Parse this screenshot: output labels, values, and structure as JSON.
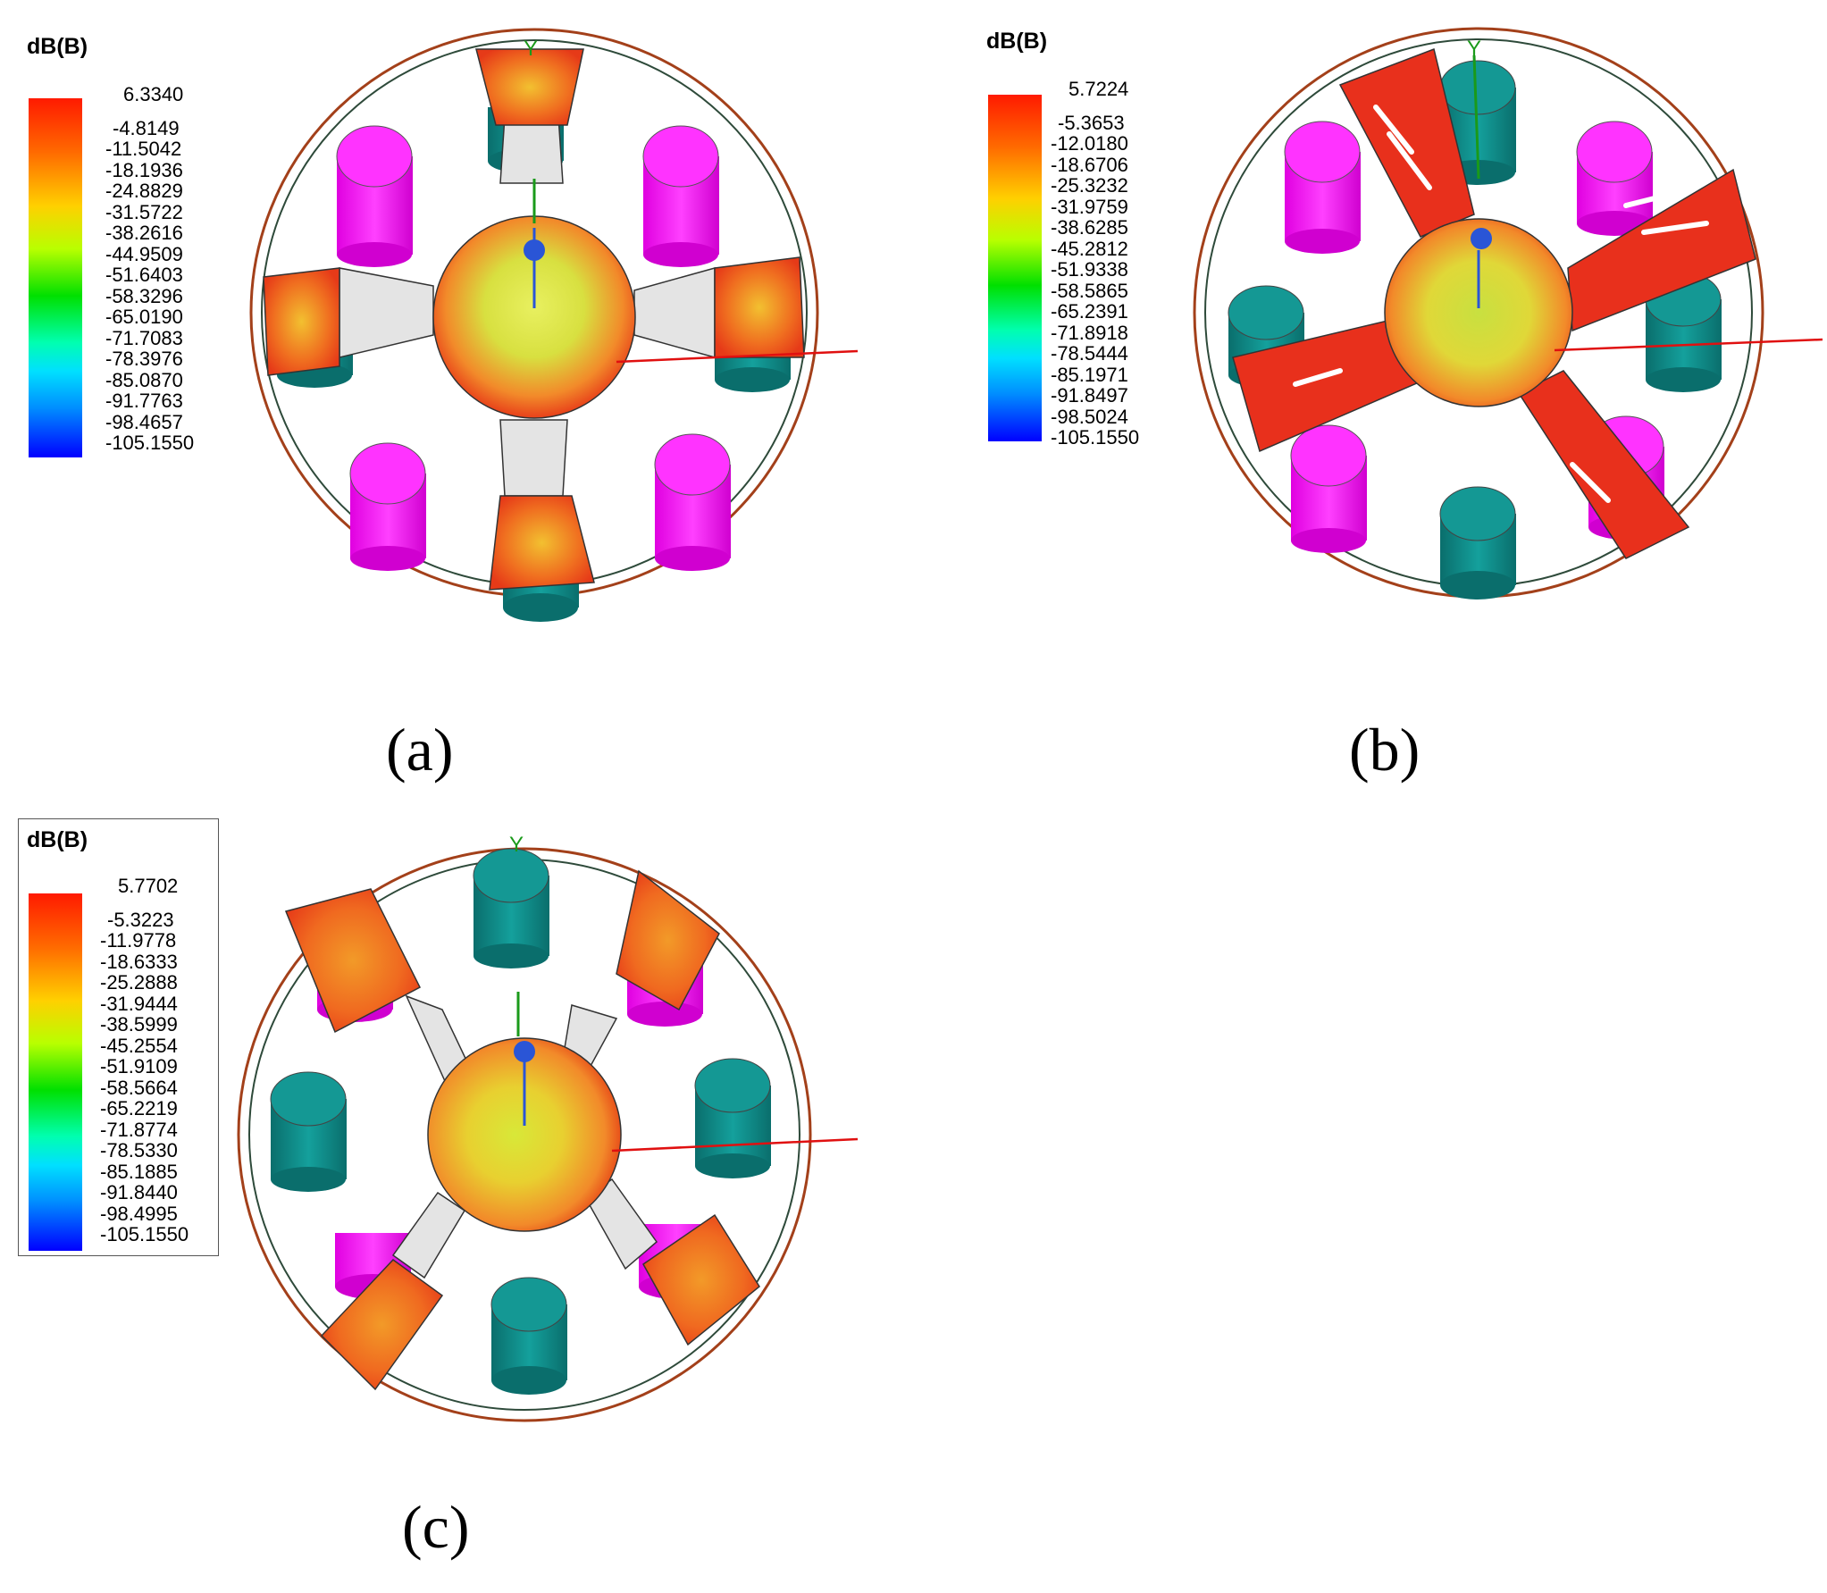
{
  "panels": [
    {
      "id": "a",
      "caption": "(a)",
      "legend": {
        "title": "dB(B)",
        "values": [
          "6.3340",
          "-4.8149",
          "-11.5042",
          "-18.1936",
          "-24.8829",
          "-31.5722",
          "-38.2616",
          "-44.9509",
          "-51.6403",
          "-58.3296",
          "-65.0190",
          "-71.7083",
          "-78.3976",
          "-85.0870",
          "-91.7763",
          "-98.4657",
          "-105.1550"
        ]
      },
      "axis_label": "Y"
    },
    {
      "id": "b",
      "caption": "(b)",
      "legend": {
        "title": "dB(B)",
        "values": [
          "5.7224",
          "-5.3653",
          "-12.0180",
          "-18.6706",
          "-25.3232",
          "-31.9759",
          "-38.6285",
          "-45.2812",
          "-51.9338",
          "-58.5865",
          "-65.2391",
          "-71.8918",
          "-78.5444",
          "-85.1971",
          "-91.8497",
          "-98.5024",
          "-105.1550"
        ]
      },
      "axis_label": "Y"
    },
    {
      "id": "c",
      "caption": "(c)",
      "legend": {
        "title": "dB(B)",
        "values": [
          "5.7702",
          "-5.3223",
          "-11.9778",
          "-18.6333",
          "-25.2888",
          "-31.9444",
          "-38.5999",
          "-45.2554",
          "-51.9109",
          "-58.5664",
          "-65.2219",
          "-71.8774",
          "-78.5330",
          "-85.1885",
          "-91.8440",
          "-98.4995",
          "-105.1550"
        ]
      },
      "axis_label": "Y"
    }
  ],
  "colors": {
    "ring": "#a0401a",
    "magnet_magenta": "#ff00ff",
    "magnet_teal": "#0f8a88",
    "pole_gray": "#e2e2e2",
    "field_orange": "#f26a1c",
    "field_red": "#e8231a",
    "field_yellow": "#e3e22a",
    "axis_blue": "#2a55d6",
    "axis_green": "#1a9a1a",
    "axis_red": "#e01010"
  }
}
